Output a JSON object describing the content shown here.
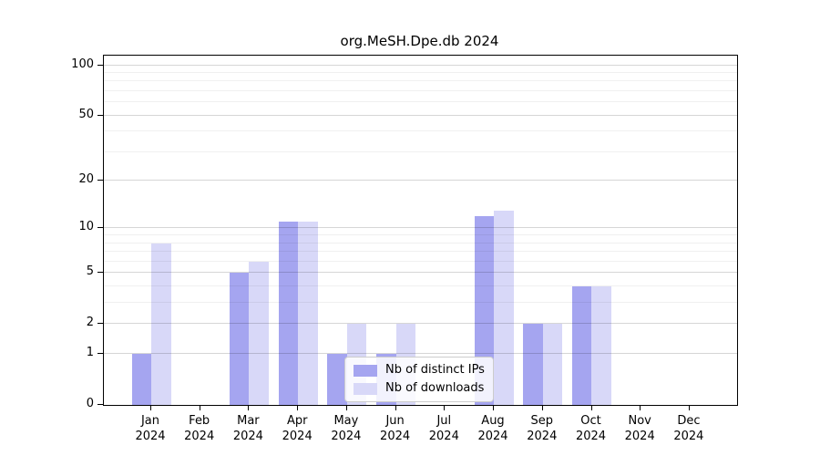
{
  "title": "org.MeSH.Dpe.db 2024",
  "chart_data": {
    "type": "bar",
    "title": "org.MeSH.Dpe.db 2024",
    "categories": [
      "Jan 2024",
      "Feb 2024",
      "Mar 2024",
      "Apr 2024",
      "May 2024",
      "Jun 2024",
      "Jul 2024",
      "Aug 2024",
      "Sep 2024",
      "Oct 2024",
      "Nov 2024",
      "Dec 2024"
    ],
    "series": [
      {
        "name": "Nb of distinct IPs",
        "color": "#a5a5f0",
        "values": [
          1,
          0,
          5,
          11,
          1,
          1,
          0,
          12,
          2,
          4,
          0,
          0
        ]
      },
      {
        "name": "Nb of downloads",
        "color": "#d8d8f8",
        "values": [
          8,
          0,
          6,
          11,
          2,
          2,
          0,
          13,
          2,
          4,
          0,
          0
        ]
      }
    ],
    "xlabel": "",
    "ylabel": "",
    "scale": "log1p",
    "ylim": [
      0,
      114
    ],
    "yticks": [
      0,
      1,
      2,
      5,
      10,
      20,
      50,
      100
    ],
    "minor_yticks": [
      3,
      4,
      6,
      7,
      8,
      9,
      30,
      40,
      60,
      70,
      80,
      90
    ],
    "grid": "on",
    "legend_position": "lower-center-inside"
  }
}
